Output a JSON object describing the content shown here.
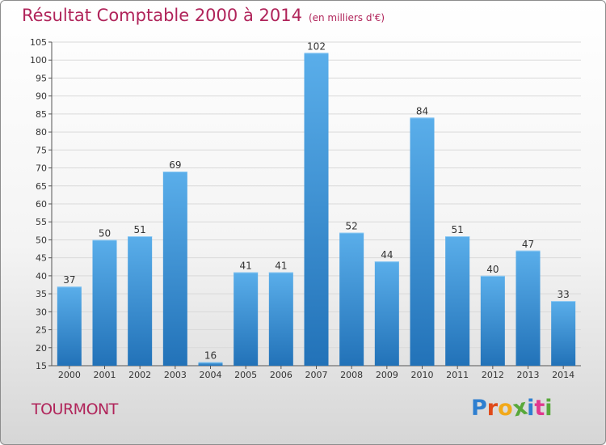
{
  "header": {
    "title": "Résultat Comptable 2000 à 2014",
    "subtitle": "(en milliers d'€)"
  },
  "footer": {
    "commune": "TOURMONT",
    "logo_text": "Proxiti"
  },
  "colors": {
    "title": "#b0245a",
    "bar_top": "#5aaeea",
    "bar_bottom": "#2272b8",
    "grid": "#d9d9d9"
  },
  "chart_data": {
    "type": "bar",
    "title": "Résultat Comptable 2000 à 2014",
    "subtitle": "(en milliers d'€)",
    "categories": [
      "2000",
      "2001",
      "2002",
      "2003",
      "2004",
      "2005",
      "2006",
      "2007",
      "2008",
      "2009",
      "2010",
      "2011",
      "2012",
      "2013",
      "2014"
    ],
    "values": [
      37,
      50,
      51,
      69,
      16,
      41,
      41,
      102,
      52,
      44,
      84,
      51,
      40,
      47,
      33
    ],
    "ylim": [
      15,
      105
    ],
    "yticks": [
      15,
      20,
      25,
      30,
      35,
      40,
      45,
      50,
      55,
      60,
      65,
      70,
      75,
      80,
      85,
      90,
      95,
      100,
      105
    ],
    "grid": true,
    "legend": "none"
  }
}
